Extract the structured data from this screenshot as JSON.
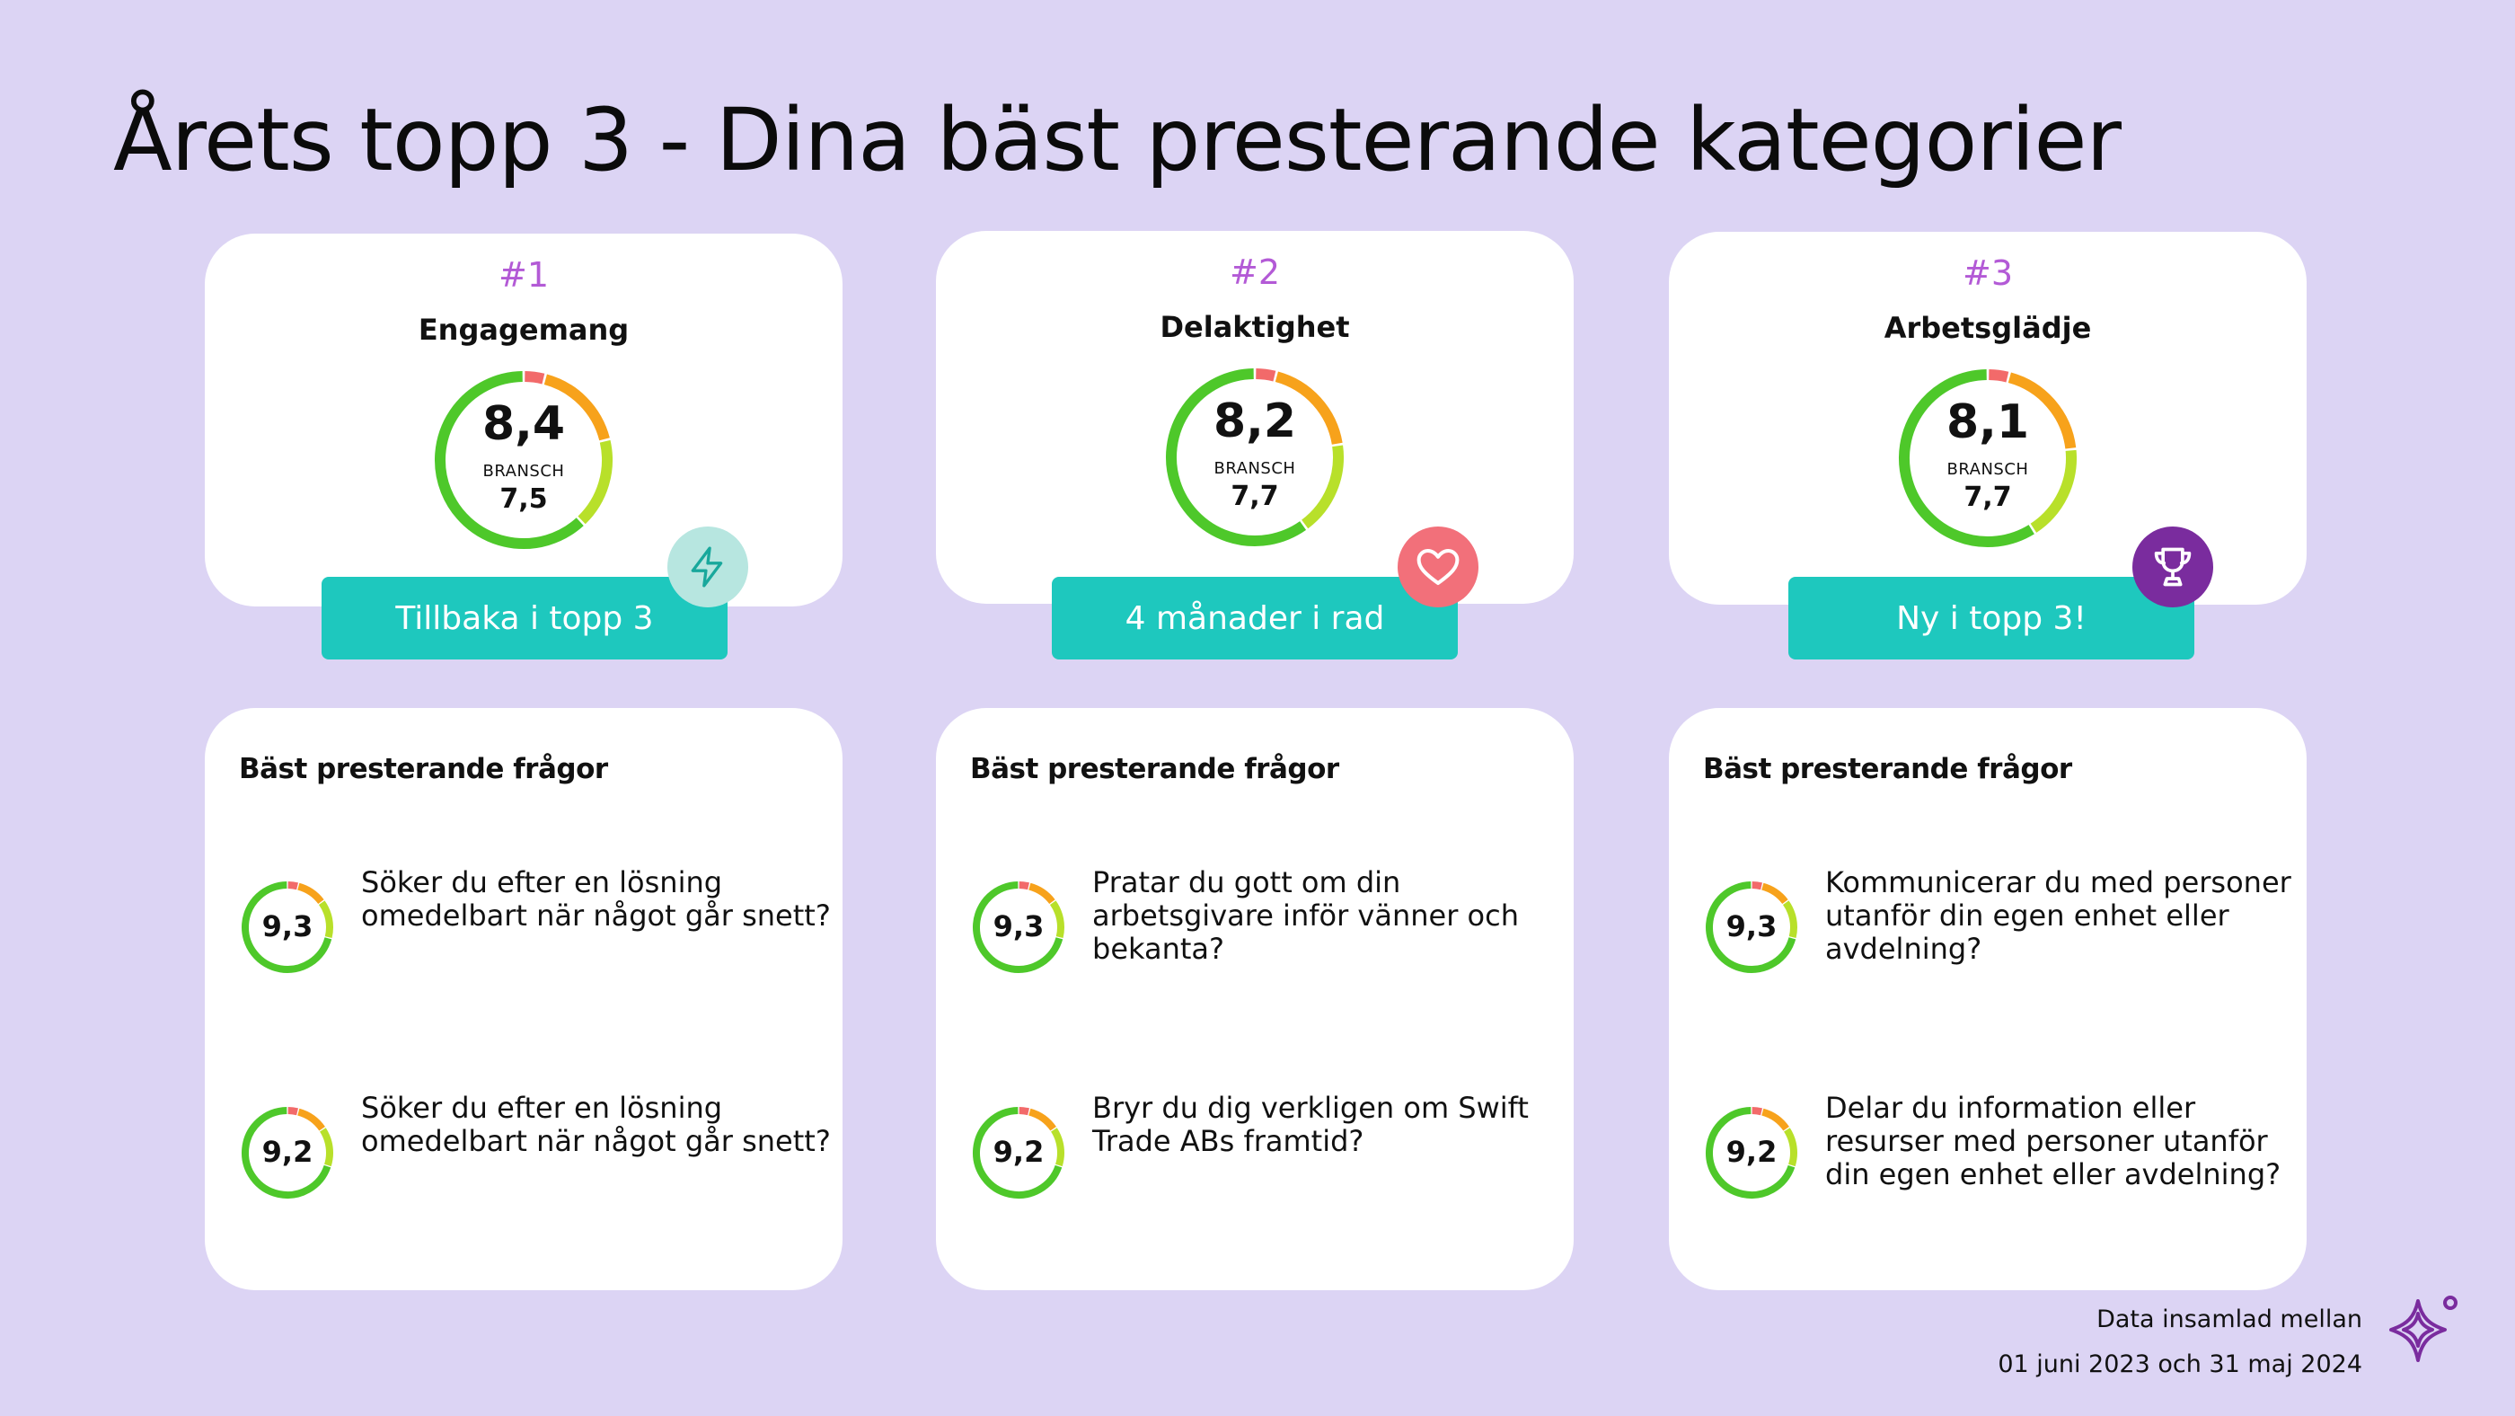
{
  "title": "Årets topp 3 - Dina bäst presterande kategorier",
  "colors": {
    "background": "#dcd4f4",
    "teal": "#1ec8be",
    "purple_rank": "#b35ad6",
    "green": "#4ec82a",
    "lime": "#b8e02a",
    "orange": "#f7a21b",
    "red": "#f26a6a"
  },
  "categories": [
    {
      "rank": "#1",
      "name": "Engagemang",
      "score": "8,4",
      "bench_label": "BRANSCH",
      "bench": "7,5",
      "score_value": 8.4,
      "badge": "Tillbaka i topp 3",
      "icon": "lightning-icon",
      "icon_bg": "#b7e6e0",
      "questions_heading": "Bäst presterande frågor",
      "questions": [
        {
          "score": "9,3",
          "score_value": 9.3,
          "text": "Söker du efter en lösning omedelbart när något går snett?"
        },
        {
          "score": "9,2",
          "score_value": 9.2,
          "text": "Söker du efter en lösning omedelbart när något går snett?"
        }
      ]
    },
    {
      "rank": "#2",
      "name": "Delaktighet",
      "score": "8,2",
      "bench_label": "BRANSCH",
      "bench": "7,7",
      "score_value": 8.2,
      "badge": "4 månader i rad",
      "icon": "heart-icon",
      "icon_bg": "#f2707a",
      "questions_heading": "Bäst presterande frågor",
      "questions": [
        {
          "score": "9,3",
          "score_value": 9.3,
          "text": "Pratar du gott om din arbetsgivare inför vänner och bekanta?"
        },
        {
          "score": "9,2",
          "score_value": 9.2,
          "text": "Bryr du dig verkligen om Swift Trade ABs framtid?"
        }
      ]
    },
    {
      "rank": "#3",
      "name": "Arbetsglädje",
      "score": "8,1",
      "bench_label": "BRANSCH",
      "bench": "7,7",
      "score_value": 8.1,
      "badge": "Ny i topp 3!",
      "icon": "trophy-icon",
      "icon_bg": "#7a2c9e",
      "questions_heading": "Bäst presterande frågor",
      "questions": [
        {
          "score": "9,3",
          "score_value": 9.3,
          "text": "Kommunicerar du med personer utanför din egen enhet eller avdelning?"
        },
        {
          "score": "9,2",
          "score_value": 9.2,
          "text": "Delar du information eller resurser med personer utanför din egen enhet eller avdelning?"
        }
      ]
    }
  ],
  "footer": {
    "line1": "Data insamlad mellan",
    "line2": "01 juni 2023 och 31 maj 2024"
  },
  "logo_icon": "sparkle-logo-icon"
}
